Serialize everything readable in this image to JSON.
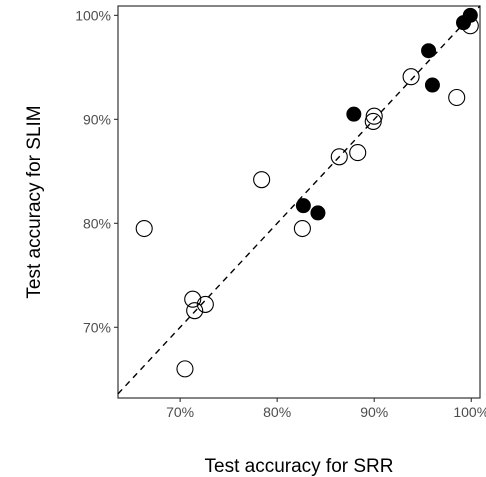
{
  "chart_data": {
    "type": "scatter",
    "xlabel": "Test accuracy for SRR",
    "ylabel": "Test accuracy for SLIM",
    "xlim": [
      63.6,
      100.9
    ],
    "ylim": [
      63.2,
      100.9
    ],
    "x_ticks": [
      70,
      80,
      90,
      100
    ],
    "x_tick_labels": [
      "70%",
      "80%",
      "90%",
      "100%"
    ],
    "y_ticks": [
      70,
      80,
      90,
      100
    ],
    "y_tick_labels": [
      "70%",
      "80%",
      "90%",
      "100%"
    ],
    "grid": false,
    "reference_line": {
      "style": "dashed",
      "slope": 1,
      "intercept": 0
    },
    "series": [
      {
        "marker": "filled-circle",
        "color": "#000000",
        "points": [
          {
            "x": 99.9,
            "y": 100.0
          },
          {
            "x": 99.2,
            "y": 99.3
          },
          {
            "x": 95.6,
            "y": 96.6
          },
          {
            "x": 96.0,
            "y": 93.3
          },
          {
            "x": 87.9,
            "y": 90.5
          },
          {
            "x": 82.7,
            "y": 81.7
          },
          {
            "x": 84.2,
            "y": 81.0
          }
        ]
      },
      {
        "marker": "open-circle",
        "color": "#000000",
        "points": [
          {
            "x": 99.9,
            "y": 99.0
          },
          {
            "x": 93.8,
            "y": 94.1
          },
          {
            "x": 98.5,
            "y": 92.1
          },
          {
            "x": 90.0,
            "y": 90.3
          },
          {
            "x": 89.9,
            "y": 89.8
          },
          {
            "x": 88.3,
            "y": 86.8
          },
          {
            "x": 86.4,
            "y": 86.4
          },
          {
            "x": 78.4,
            "y": 84.2
          },
          {
            "x": 66.3,
            "y": 79.5
          },
          {
            "x": 82.6,
            "y": 79.5
          },
          {
            "x": 71.3,
            "y": 72.7
          },
          {
            "x": 72.6,
            "y": 72.2
          },
          {
            "x": 71.5,
            "y": 71.6
          },
          {
            "x": 70.5,
            "y": 66.0
          }
        ]
      }
    ]
  }
}
